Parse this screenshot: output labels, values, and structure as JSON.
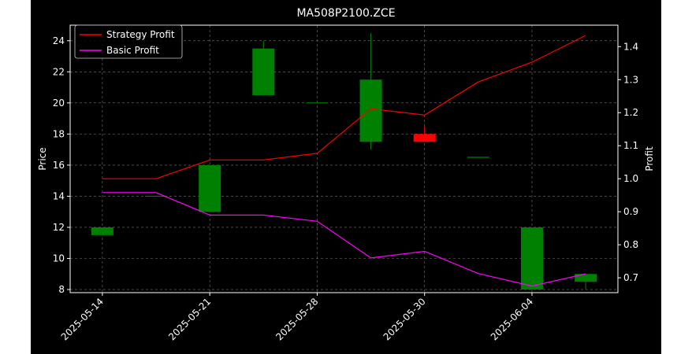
{
  "chart_data": {
    "type": "candlestick",
    "title": "MA508P2100.ZCE",
    "xlabel": "",
    "ylabel": "Price",
    "y2label": "Profit",
    "ylim": [
      7.8,
      25.0
    ],
    "y2lim": [
      0.655,
      1.465
    ],
    "yticks": [
      8,
      10,
      12,
      14,
      16,
      18,
      20,
      22,
      24
    ],
    "y2ticks": [
      "0.7",
      "0.8",
      "0.9",
      "1.0",
      "1.1",
      "1.2",
      "1.3",
      "1.4"
    ],
    "xlim": [
      -0.6,
      9.6
    ],
    "xticks": [
      {
        "pos": 0,
        "label": "2025-05-14"
      },
      {
        "pos": 2,
        "label": "2025-05-21"
      },
      {
        "pos": 4,
        "label": "2025-05-28"
      },
      {
        "pos": 6,
        "label": "2025-05-30"
      },
      {
        "pos": 8,
        "label": "2025-06-04"
      }
    ],
    "candles": [
      {
        "open": 11.5,
        "high": 12.0,
        "low": 11.5,
        "close": 12.0
      },
      {
        "open": 14.0,
        "high": 14.0,
        "low": 14.0,
        "close": 14.0
      },
      {
        "open": 13.0,
        "high": 16.0,
        "low": 13.0,
        "close": 16.0
      },
      {
        "open": 20.5,
        "high": 24.0,
        "low": 20.5,
        "close": 23.5
      },
      {
        "open": 20.0,
        "high": 20.0,
        "low": 20.0,
        "close": 20.0
      },
      {
        "open": 17.5,
        "high": 24.5,
        "low": 17.0,
        "close": 21.5
      },
      {
        "open": 18.0,
        "high": 18.5,
        "low": 17.5,
        "close": 17.5
      },
      {
        "open": 16.5,
        "high": 16.5,
        "low": 16.5,
        "close": 16.5
      },
      {
        "open": 8.0,
        "high": 12.0,
        "low": 8.0,
        "close": 12.0
      },
      {
        "open": 8.5,
        "high": 9.0,
        "low": 8.0,
        "close": 9.0
      }
    ],
    "series": [
      {
        "name": "Strategy Profit",
        "color": "#ff0000",
        "values": [
          1.0,
          1.0,
          1.057,
          1.057,
          1.077,
          1.212,
          1.193,
          1.293,
          1.353,
          1.434
        ]
      },
      {
        "name": "Basic Profit",
        "color": "#ff00ff",
        "values": [
          0.958,
          0.958,
          0.89,
          0.89,
          0.871,
          0.76,
          0.78,
          0.713,
          0.675,
          0.712
        ]
      }
    ],
    "grid": true,
    "legend": "top-left",
    "colors": {
      "up": "#008000",
      "down": "#ff0000",
      "background": "#000000",
      "text": "#ffffff"
    }
  }
}
